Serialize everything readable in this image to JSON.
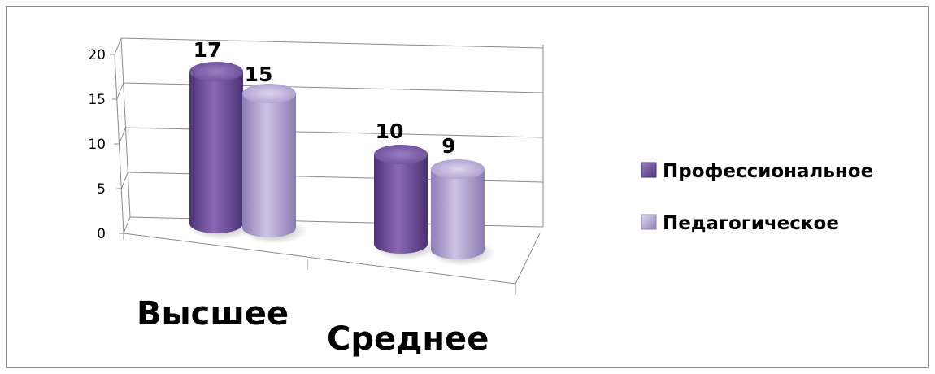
{
  "chart_data": {
    "type": "bar",
    "style": "3d-cylinder",
    "categories": [
      "Высшее",
      "Среднее"
    ],
    "series": [
      {
        "name": "Профессиональное",
        "values": [
          17,
          10
        ],
        "color": "#7d5ba6"
      },
      {
        "name": "Педагогическое",
        "values": [
          15,
          9
        ],
        "color": "#b5a7d3"
      }
    ],
    "y_ticks": [
      "0",
      "5",
      "10",
      "15",
      "20"
    ],
    "ylim": [
      0,
      20
    ],
    "grid": true,
    "legend": "right",
    "data_labels": true
  }
}
